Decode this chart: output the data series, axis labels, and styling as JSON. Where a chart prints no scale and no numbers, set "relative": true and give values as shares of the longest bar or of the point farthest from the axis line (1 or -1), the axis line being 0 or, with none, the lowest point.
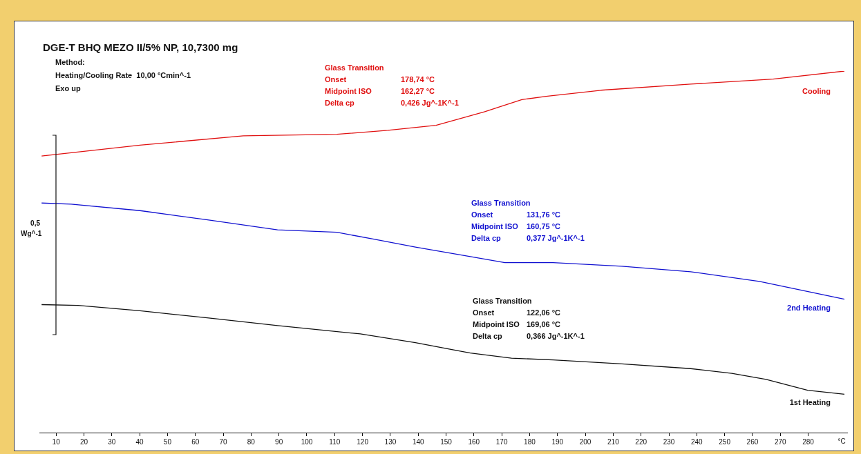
{
  "chart_data": {
    "type": "line",
    "title": "DGE-T BHQ MEZO II/5% NP, 10,7300 mg",
    "xlabel": "°C",
    "ylabel": "0,5 Wg^-1",
    "relative": true,
    "legend": false,
    "grid": false,
    "tick_labels": "x",
    "marker": "none",
    "line_style": "solid",
    "xlim": [
      4,
      294
    ],
    "xticks": [
      10,
      20,
      30,
      40,
      50,
      60,
      70,
      80,
      90,
      100,
      110,
      120,
      130,
      140,
      150,
      160,
      170,
      180,
      190,
      200,
      210,
      220,
      230,
      240,
      250,
      260,
      270,
      280
    ],
    "annotations": [
      "Method:",
      "Heating/Cooling Rate  10,00 °Cmin^-1",
      "Exo up",
      "Glass Transition",
      "Onset  178,74 °C",
      "Midpoint ISO  162,27 °C",
      "Delta cp  0,426 Jg^-1K^-1",
      "Glass Transition",
      "Onset  131,76 °C",
      "Midpoint ISO  160,75 °C",
      "Delta cp  0,377 Jg^-1K^-1",
      "Glass Transition",
      "Onset  122,06 °C",
      "Midpoint ISO  169,06 °C",
      "Delta cp  0,366 Jg^-1K^-1"
    ],
    "series": [
      {
        "name": "Cooling",
        "color": "#e01010",
        "x": [
          4.8,
          40.1,
          77.2,
          110.8,
          129.1,
          146.4,
          163.7,
          177.2,
          185.9,
          205.6,
          237.8,
          267.4,
          293
        ],
        "values": [
          0.765,
          0.795,
          0.821,
          0.825,
          0.836,
          0.85,
          0.887,
          0.921,
          0.93,
          0.947,
          0.964,
          0.978,
          1
        ]
      },
      {
        "name": "2nd Heating",
        "color": "#1010d0",
        "x": [
          4.8,
          15.4,
          40.1,
          64.8,
          89.5,
          110.8,
          124.1,
          139.0,
          158.7,
          171.1,
          188.4,
          213.1,
          237.8,
          262.5,
          293
        ],
        "values": [
          0.635,
          0.632,
          0.614,
          0.588,
          0.561,
          0.554,
          0.535,
          0.513,
          0.487,
          0.47,
          0.47,
          0.46,
          0.445,
          0.418,
          0.369
        ]
      },
      {
        "name": "1st Heating",
        "color": "#101010",
        "x": [
          4.8,
          17.9,
          40.1,
          64.8,
          89.5,
          119.2,
          139.0,
          158.7,
          173.5,
          188.4,
          213.1,
          237.8,
          252.6,
          264.9,
          279.8,
          293
        ],
        "values": [
          0.354,
          0.352,
          0.337,
          0.317,
          0.296,
          0.273,
          0.249,
          0.22,
          0.206,
          0.201,
          0.19,
          0.177,
          0.164,
          0.147,
          0.117,
          0.106
        ]
      }
    ]
  }
}
